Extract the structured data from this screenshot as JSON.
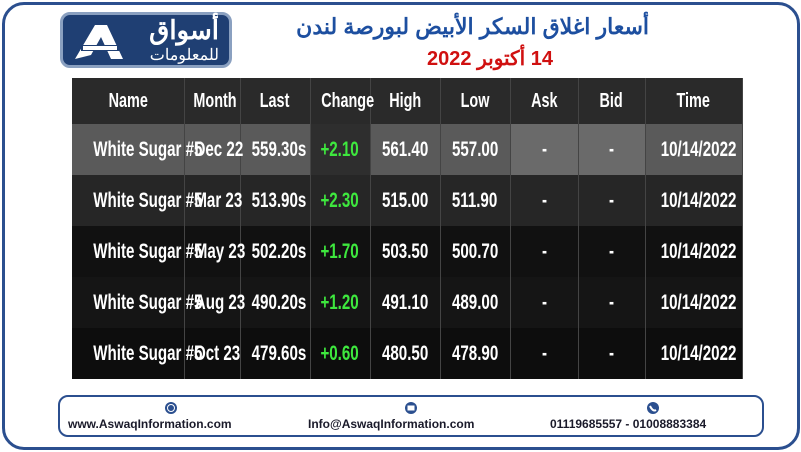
{
  "header": {
    "logo": {
      "name": "أسواق",
      "subtitle": "للمعلومات"
    },
    "title": "أسعار اغلاق السكر الأبيض لبورصة لندن",
    "date": "14 أكتوبر 2022"
  },
  "table": {
    "columns": [
      "Name",
      "Month",
      "Last",
      "Change",
      "High",
      "Low",
      "Ask",
      "Bid",
      "Time"
    ],
    "rows": [
      [
        "White Sugar #5",
        "Dec 22",
        "559.30s",
        "+2.10",
        "561.40",
        "557.00",
        "-",
        "-",
        "10/14/2022"
      ],
      [
        "White Sugar #5",
        "Mar 23",
        "513.90s",
        "+2.30",
        "515.00",
        "511.90",
        "-",
        "-",
        "10/14/2022"
      ],
      [
        "White Sugar #5",
        "May 23",
        "502.20s",
        "+1.70",
        "503.50",
        "500.70",
        "-",
        "-",
        "10/14/2022"
      ],
      [
        "White Sugar #5",
        "Aug 23",
        "490.20s",
        "+1.20",
        "491.10",
        "489.00",
        "-",
        "-",
        "10/14/2022"
      ],
      [
        "White Sugar #5",
        "Oct 23",
        "479.60s",
        "+0.60",
        "480.50",
        "478.90",
        "-",
        "-",
        "10/14/2022"
      ]
    ]
  },
  "footer": {
    "website": "www.AswaqInformation.com",
    "email": "Info@AswaqInformation.com",
    "phone": "01119685557 - 01008883384"
  }
}
